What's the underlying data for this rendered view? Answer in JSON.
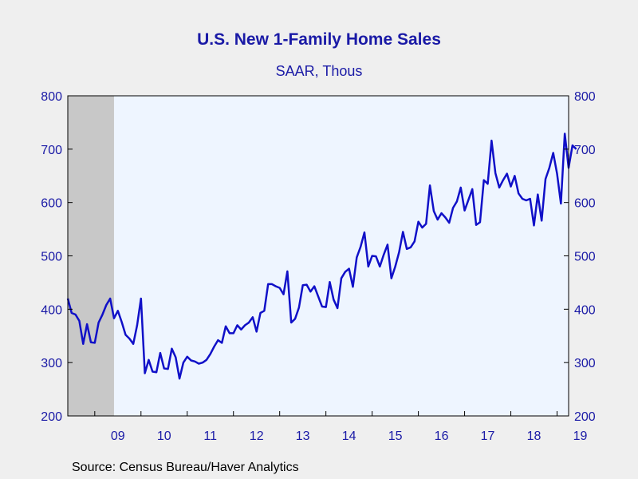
{
  "chart_data": {
    "type": "line",
    "title": "U.S. New 1-Family Home Sales",
    "subtitle": "SAAR, Thous",
    "source": "Source:  Census Bureau/Haver Analytics",
    "y_ticks": [
      200,
      300,
      400,
      500,
      600,
      700,
      800
    ],
    "ylim": [
      200,
      800
    ],
    "x_tick_labels": [
      "09",
      "10",
      "11",
      "12",
      "13",
      "14",
      "15",
      "16",
      "17",
      "18",
      "19"
    ],
    "recession_shading": {
      "start": "2008-06",
      "end": "2009-06"
    },
    "grid": false,
    "colors": {
      "line": "#1010c8",
      "text": "#1a1aa6",
      "plot_bg": "#eef5ff",
      "recession": "#c8c8c8"
    },
    "series": [
      {
        "start": "2008-06",
        "values": [
          420,
          393,
          390,
          378,
          335,
          372,
          338,
          337,
          375,
          390,
          408,
          420,
          383,
          397,
          376,
          352,
          345,
          335,
          370,
          420,
          280,
          305,
          283,
          282,
          318,
          289,
          288,
          326,
          310,
          270,
          300,
          311,
          304,
          302,
          298,
          300,
          305,
          316,
          330,
          342,
          337,
          368,
          355,
          355,
          370,
          362,
          370,
          375,
          385,
          358,
          393,
          397,
          447,
          447,
          443,
          440,
          428,
          471,
          375,
          382,
          403,
          445,
          446,
          433,
          443,
          424,
          405,
          404,
          451,
          418,
          402,
          458,
          470,
          476,
          442,
          497,
          517,
          544,
          480,
          500,
          499,
          480,
          502,
          521,
          458,
          480,
          507,
          545,
          513,
          516,
          527,
          564,
          553,
          560,
          632,
          584,
          568,
          580,
          572,
          562,
          590,
          602,
          628,
          585,
          605,
          625,
          558,
          563,
          642,
          635,
          716,
          655,
          628,
          642,
          654,
          630,
          650,
          617,
          607,
          604,
          607,
          557,
          615,
          566,
          644,
          665,
          693,
          654,
          598,
          729,
          665,
          707,
          700
        ]
      }
    ]
  }
}
